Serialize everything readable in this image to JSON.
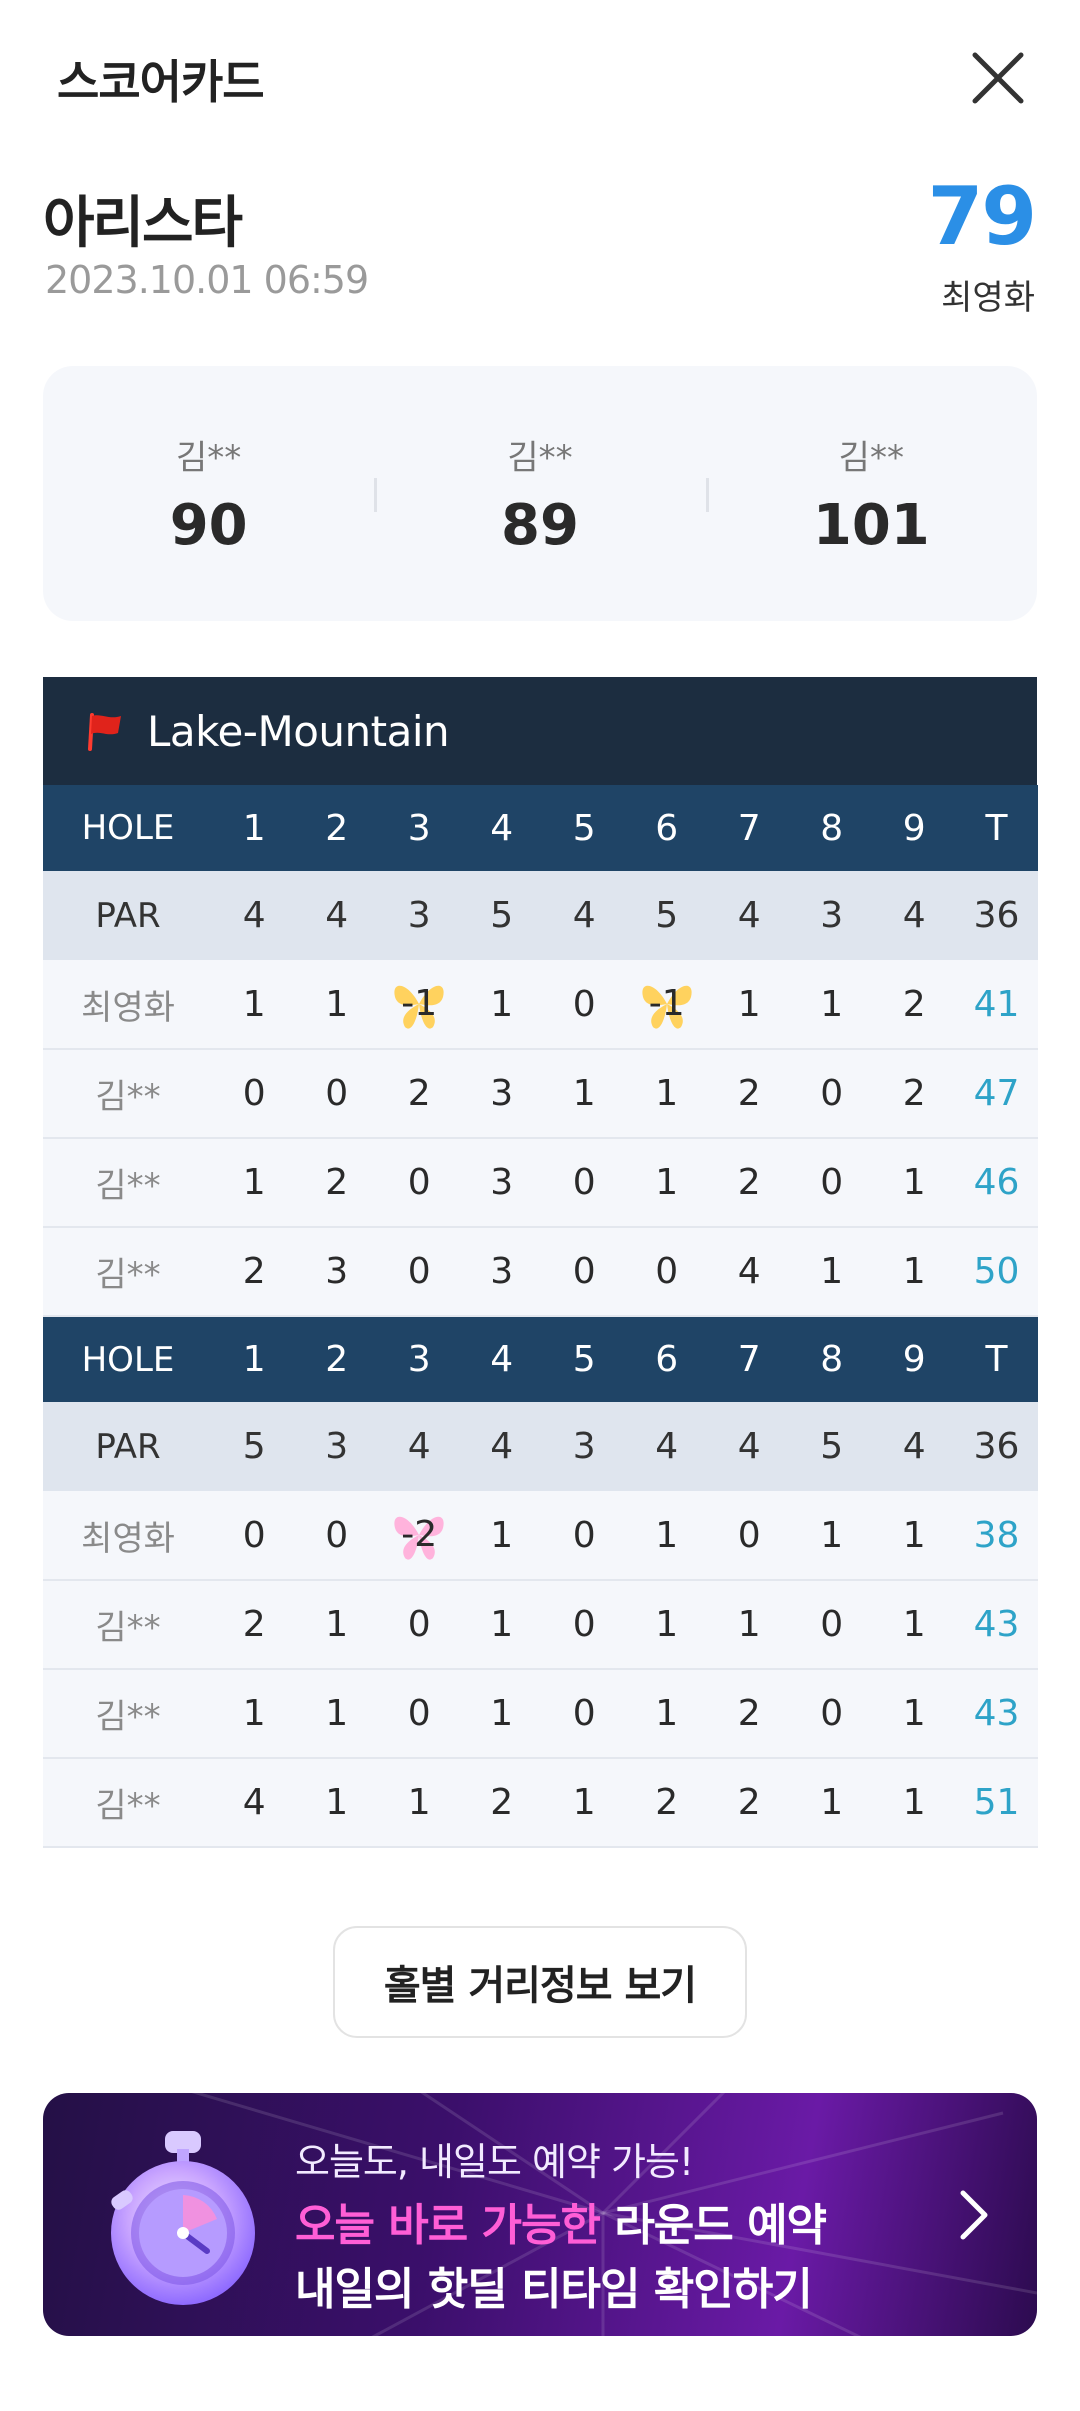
{
  "header": {
    "title": "스코어카드"
  },
  "round": {
    "course_name": "아리스타",
    "datetime": "2023.10.01 06:59",
    "my_score": "79",
    "my_name": "최영화"
  },
  "companions": [
    {
      "name": "김**",
      "score": "90"
    },
    {
      "name": "김**",
      "score": "89"
    },
    {
      "name": "김**",
      "score": "101"
    }
  ],
  "scorecard": {
    "course_label": "Lake-Mountain",
    "flag_color": "#e0231b",
    "halves": [
      {
        "hole_header": [
          "HOLE",
          "1",
          "2",
          "3",
          "4",
          "5",
          "6",
          "7",
          "8",
          "9",
          "T"
        ],
        "par": [
          "PAR",
          "4",
          "4",
          "3",
          "5",
          "4",
          "5",
          "4",
          "3",
          "4",
          "36"
        ],
        "players": [
          {
            "name": "최영화",
            "scores": [
              "1",
              "1",
              "-1",
              "1",
              "0",
              "-1",
              "1",
              "1",
              "2"
            ],
            "total": "41"
          },
          {
            "name": "김**",
            "scores": [
              "0",
              "0",
              "2",
              "3",
              "1",
              "1",
              "2",
              "0",
              "2"
            ],
            "total": "47"
          },
          {
            "name": "김**",
            "scores": [
              "1",
              "2",
              "0",
              "3",
              "0",
              "1",
              "2",
              "0",
              "1"
            ],
            "total": "46"
          },
          {
            "name": "김**",
            "scores": [
              "2",
              "3",
              "0",
              "3",
              "0",
              "0",
              "4",
              "1",
              "1"
            ],
            "total": "50"
          }
        ]
      },
      {
        "hole_header": [
          "HOLE",
          "1",
          "2",
          "3",
          "4",
          "5",
          "6",
          "7",
          "8",
          "9",
          "T"
        ],
        "par": [
          "PAR",
          "5",
          "3",
          "4",
          "4",
          "3",
          "4",
          "4",
          "5",
          "4",
          "36"
        ],
        "players": [
          {
            "name": "최영화",
            "scores": [
              "0",
              "0",
              "-2",
              "1",
              "0",
              "1",
              "0",
              "1",
              "1"
            ],
            "total": "38"
          },
          {
            "name": "김**",
            "scores": [
              "2",
              "1",
              "0",
              "1",
              "0",
              "1",
              "1",
              "0",
              "1"
            ],
            "total": "43"
          },
          {
            "name": "김**",
            "scores": [
              "1",
              "1",
              "0",
              "1",
              "0",
              "1",
              "2",
              "0",
              "1"
            ],
            "total": "43"
          },
          {
            "name": "김**",
            "scores": [
              "4",
              "1",
              "1",
              "2",
              "1",
              "2",
              "2",
              "1",
              "1"
            ],
            "total": "51"
          }
        ]
      }
    ],
    "badge_colors": {
      "birdie": "#ffd25e",
      "eagle": "#ffb3dc"
    }
  },
  "distance_button": {
    "label": "홀별 거리정보 보기"
  },
  "promo": {
    "line1": "오늘도, 내일도 예약 가능!",
    "line2_highlight": "오늘 바로 가능한",
    "line2_rest": " 라운드 예약",
    "line3": "내일의 핫딜 티타임 확인하기"
  },
  "colors": {
    "accent_blue": "#2b8fe6",
    "total_teal": "#2ea3c8",
    "hole_header_bg": "#1f4466",
    "banner_bg": "#1c2d40"
  }
}
